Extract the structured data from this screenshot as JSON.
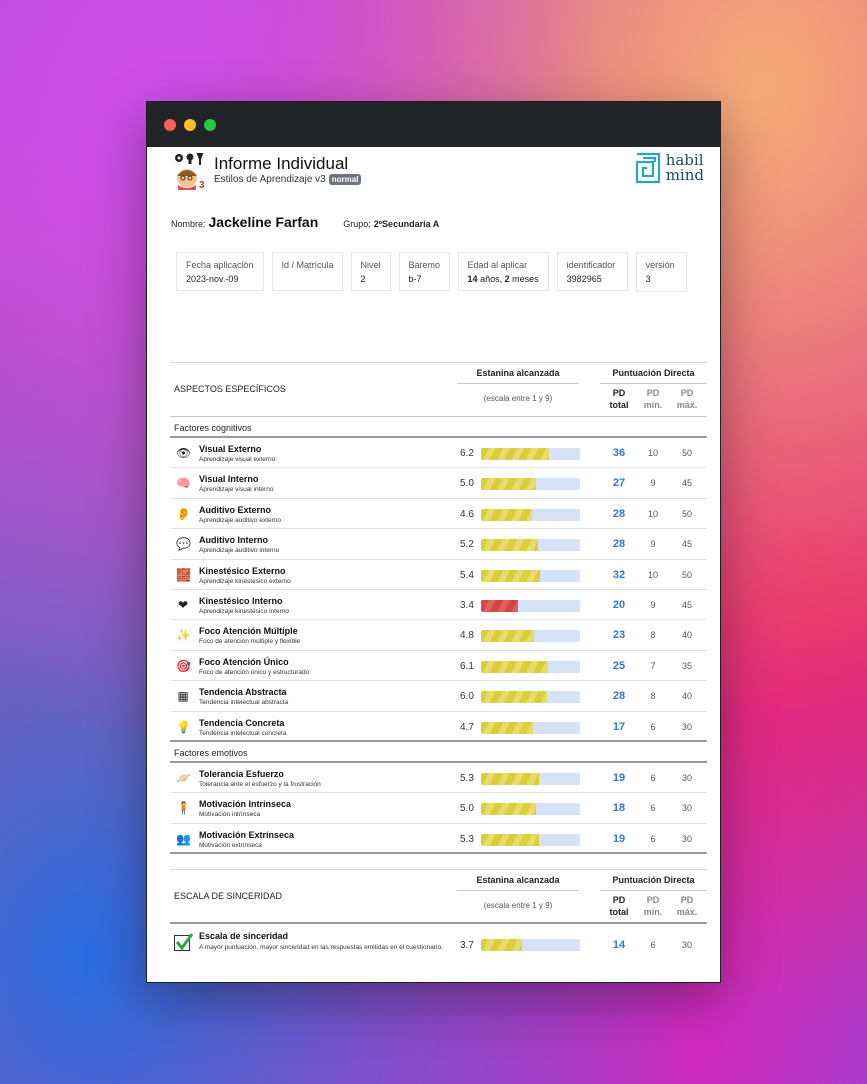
{
  "window": {
    "controls": [
      "close",
      "minimize",
      "maximize"
    ],
    "colors": {
      "close": "#ff5f57",
      "minimize": "#febc2e",
      "maximize": "#28c840"
    }
  },
  "header": {
    "title": "Informe Individual",
    "subtitle": "Estilos de Aprendizaje v3",
    "badge": "normal",
    "brand_line1": "habil",
    "brand_line2": "mind"
  },
  "student": {
    "name_label": "Nombre:",
    "name": "Jackeline Farfan",
    "group_label": "Grupo:",
    "group": "2ºSecundaria A"
  },
  "info_cards": [
    {
      "label": "Fecha aplicación",
      "value": "2023-nov.-09"
    },
    {
      "label": "Id / Matrícula",
      "value": ""
    },
    {
      "label": "Nivel",
      "value": "2"
    },
    {
      "label": "Baremo",
      "value": "b-7"
    },
    {
      "label": "Edad al aplicar",
      "value_years": "14",
      "years_unit": "años,",
      "value_months": "2",
      "months_unit": "meses"
    },
    {
      "label": "identificador",
      "value": "3982965"
    },
    {
      "label": "versión",
      "value": "3"
    }
  ],
  "specific": {
    "section_title": "ASPECTOS ESPECÍFICOS",
    "col_estanina": "Estanina alcanzada",
    "col_scale": "(escala entre 1 y 9)",
    "col_pd": "Puntuación Directa",
    "col_pd_total": [
      "PD",
      "total"
    ],
    "col_pd_min": [
      "PD",
      "mín."
    ],
    "col_pd_max": [
      "PD",
      "máx."
    ],
    "groups": [
      {
        "label": "Factores cognitivos",
        "rows": [
          {
            "icon": "eye-icon",
            "title": "Visual Externo",
            "sub": "Aprendizaje visual externo",
            "score": "6.2",
            "value": 6.2,
            "color": "yellow",
            "pd": "36",
            "min": "10",
            "max": "50"
          },
          {
            "icon": "brain-color-icon",
            "title": "Visual Interno",
            "sub": "Aprendizaje visual interno",
            "score": "5.0",
            "value": 5.0,
            "color": "yellow",
            "pd": "27",
            "min": "9",
            "max": "45"
          },
          {
            "icon": "ear-icon",
            "title": "Auditivo Externo",
            "sub": "Aprendizaje auditivo externo",
            "score": "4.6",
            "value": 4.6,
            "color": "yellow",
            "pd": "28",
            "min": "10",
            "max": "50"
          },
          {
            "icon": "speech-balloon-icon",
            "title": "Auditivo Interno",
            "sub": "Aprendizaje auditivo interno",
            "score": "5.2",
            "value": 5.2,
            "color": "yellow",
            "pd": "28",
            "min": "9",
            "max": "45"
          },
          {
            "icon": "blocks-icon",
            "title": "Kinestésico Externo",
            "sub": "Aprendizaje kinestésico externo",
            "score": "5.4",
            "value": 5.4,
            "color": "yellow",
            "pd": "32",
            "min": "10",
            "max": "50"
          },
          {
            "icon": "heart-icon",
            "title": "Kinestésico Interno",
            "sub": "Aprendizaje kinestésico interno",
            "score": "3.4",
            "value": 3.4,
            "color": "red",
            "pd": "20",
            "min": "9",
            "max": "45"
          },
          {
            "icon": "sparkle-icon",
            "title": "Foco Atención Múltiple",
            "sub": "Foco de atención múltiple y flexible",
            "score": "4.8",
            "value": 4.8,
            "color": "yellow",
            "pd": "23",
            "min": "8",
            "max": "40"
          },
          {
            "icon": "target-icon",
            "title": "Foco Atención Único",
            "sub": "Foco de atención único y estructurado",
            "score": "6.1",
            "value": 6.1,
            "color": "yellow",
            "pd": "25",
            "min": "7",
            "max": "35"
          },
          {
            "icon": "abstract-grid-icon",
            "title": "Tendencia Abstracta",
            "sub": "Tendencia intelectual abstracta",
            "score": "6.0",
            "value": 6.0,
            "color": "yellow",
            "pd": "28",
            "min": "8",
            "max": "40"
          },
          {
            "icon": "lightbulb-icon",
            "title": "Tendencia Concreta",
            "sub": "Tendencia intelectual concreta",
            "score": "4.7",
            "value": 4.7,
            "color": "yellow",
            "pd": "17",
            "min": "6",
            "max": "30"
          }
        ]
      },
      {
        "label": "Factores emotivos",
        "rows": [
          {
            "icon": "planet-icon",
            "title": "Tolerancia Esfuerzo",
            "sub": "Tolerancia ante el esfuerzo y la frustración",
            "score": "5.3",
            "value": 5.3,
            "color": "yellow",
            "pd": "19",
            "min": "6",
            "max": "30"
          },
          {
            "icon": "person-icon",
            "title": "Motivación Intrínseca",
            "sub": "Motivación intrínseca",
            "score": "5.0",
            "value": 5.0,
            "color": "yellow",
            "pd": "18",
            "min": "6",
            "max": "30"
          },
          {
            "icon": "people-icon",
            "title": "Motivación Extrínseca",
            "sub": "Motivación extrínseca",
            "score": "5.3",
            "value": 5.3,
            "color": "yellow",
            "pd": "19",
            "min": "6",
            "max": "30"
          }
        ]
      }
    ]
  },
  "sincerity": {
    "section_title": "ESCALA DE SINCERIDAD",
    "col_estanina": "Estanina alcanzada",
    "col_scale": "(escala entre 1 y 9)",
    "col_pd": "Puntuación Directa",
    "col_pd_total": [
      "PD",
      "total"
    ],
    "col_pd_min": [
      "PD",
      "mín."
    ],
    "col_pd_max": [
      "PD",
      "máx."
    ],
    "row": {
      "icon": "checkbox-icon",
      "title": "Escala de sinceridad",
      "sub": "A mayor puntuación, mayor sinceridad en las respuestas emitidas en el cuestionario.",
      "score": "3.7",
      "value": 3.7,
      "color": "yellow",
      "pd": "14",
      "min": "6",
      "max": "30"
    }
  }
}
